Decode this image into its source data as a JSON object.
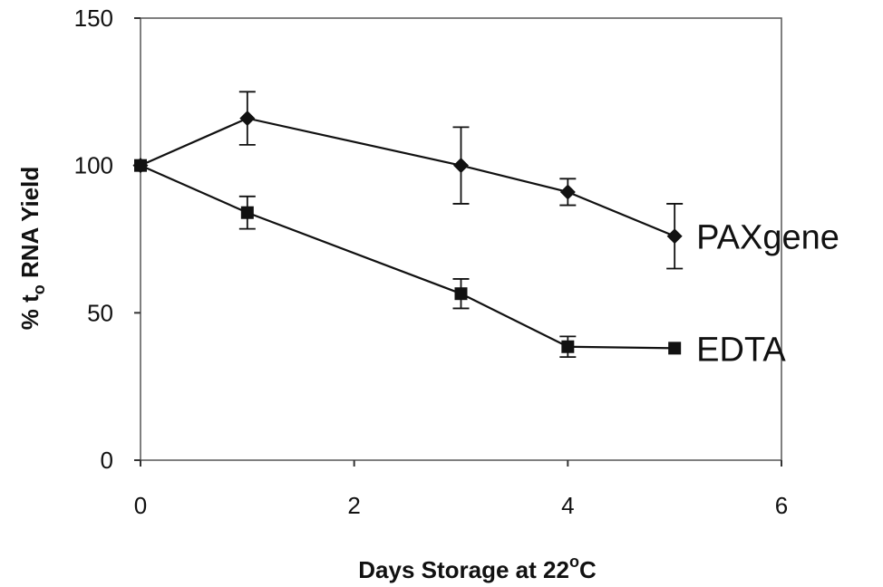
{
  "chart_data": {
    "type": "line",
    "xlabel": {
      "main": "Days Storage at 22",
      "sup": "o",
      "tail": "C"
    },
    "ylabel": {
      "main": "% t",
      "sub": "o",
      "tail": " RNA Yield"
    },
    "xlim": [
      0,
      6
    ],
    "ylim": [
      0,
      150
    ],
    "xticks": [
      0,
      2,
      4,
      6
    ],
    "yticks": [
      0,
      50,
      100,
      150
    ],
    "grid": false,
    "series": [
      {
        "name": "PAXgene",
        "marker": "diamond",
        "color": "#111111",
        "x": [
          0,
          1,
          3,
          4,
          5
        ],
        "y": [
          100,
          116,
          100,
          91,
          76
        ],
        "err": [
          0,
          9,
          13,
          4.5,
          11
        ]
      },
      {
        "name": "EDTA",
        "marker": "square",
        "color": "#111111",
        "x": [
          0,
          1,
          3,
          4,
          5
        ],
        "y": [
          100,
          84,
          56.5,
          38.5,
          38
        ],
        "err": [
          0,
          5.5,
          5,
          3.5,
          0
        ]
      }
    ]
  }
}
